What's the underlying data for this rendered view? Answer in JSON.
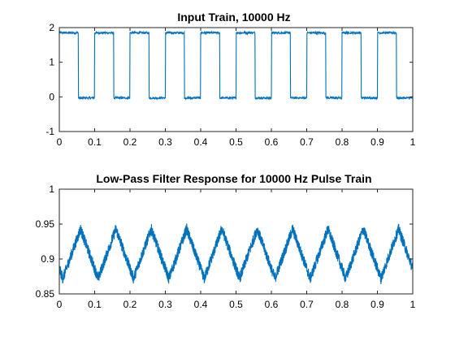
{
  "chart_data": [
    {
      "type": "line",
      "title": "Input Train, 10000 Hz",
      "xlabel": "",
      "ylabel": "",
      "xlim": [
        0,
        1
      ],
      "ylim": [
        -1,
        2
      ],
      "xticks": [
        0,
        0.1,
        0.2,
        0.3,
        0.4,
        0.5,
        0.6,
        0.7,
        0.8,
        0.9,
        1
      ],
      "xtick_labels": [
        "0",
        "0.1",
        "0.2",
        "0.3",
        "0.4",
        "0.5",
        "0.6",
        "0.7",
        "0.8",
        "0.9",
        "1"
      ],
      "yticks": [
        -1,
        0,
        1,
        2
      ],
      "ytick_labels": [
        "-1",
        "0",
        "1",
        "2"
      ],
      "grid": false,
      "color": "#0072bd",
      "series": [
        {
          "signal": "square-pulse-train",
          "period": 0.1,
          "high_value": 1.85,
          "low_value": -0.03,
          "high_start_phase": 0.0,
          "high_end_phase": 0.054
        }
      ]
    },
    {
      "type": "line",
      "title": "Low-Pass Filter Response for 10000 Hz Pulse Train",
      "xlabel": "",
      "ylabel": "",
      "xlim": [
        0,
        1
      ],
      "ylim": [
        0.85,
        1
      ],
      "xticks": [
        0,
        0.1,
        0.2,
        0.3,
        0.4,
        0.5,
        0.6,
        0.7,
        0.8,
        0.9,
        1
      ],
      "xtick_labels": [
        "0",
        "0.1",
        "0.2",
        "0.3",
        "0.4",
        "0.5",
        "0.6",
        "0.7",
        "0.8",
        "0.9",
        "1"
      ],
      "yticks": [
        0.85,
        0.9,
        0.95,
        1
      ],
      "ytick_labels": [
        "0.85",
        "0.9",
        "0.95",
        "1"
      ],
      "grid": false,
      "color": "#0072bd",
      "series": [
        {
          "signal": "noisy-triangle-wave",
          "period": 0.1,
          "min_value": 0.872,
          "max_value": 0.943,
          "first_peak_x": 0.06
        }
      ]
    }
  ]
}
